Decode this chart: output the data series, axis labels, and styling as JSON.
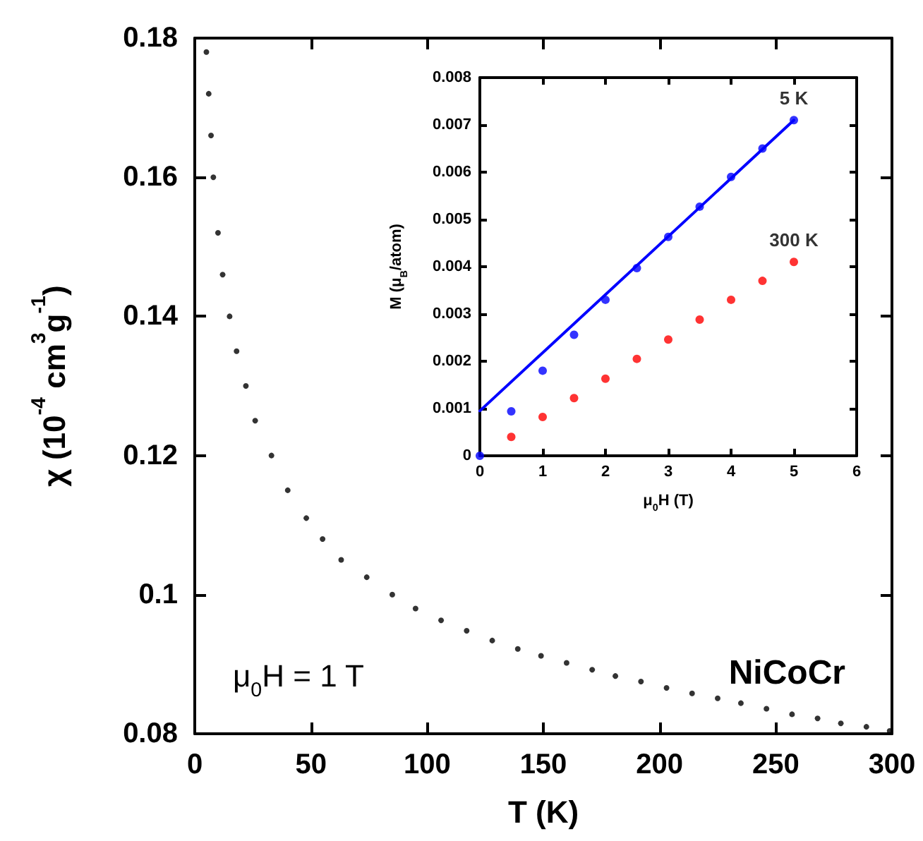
{
  "chart_data": [
    {
      "type": "scatter",
      "xlabel": "T (K)",
      "ylabel": "χ (10$^{-4}$ cm$^{3}$g$^{-1}$)",
      "marker": "circle",
      "grid": false,
      "legend": false,
      "annotations": [
        "μ$_{0}$H = 1 T",
        "NiCoCr"
      ],
      "xlim": [
        0,
        300
      ],
      "xticks": [
        0,
        50,
        100,
        150,
        200,
        250,
        300
      ],
      "ylim": [
        0.08,
        0.18
      ],
      "yticks": [
        0.08,
        0.1,
        0.12,
        0.14,
        0.16,
        0.18
      ],
      "series": [
        {
          "color": "#000000",
          "x": [
            5,
            6,
            7,
            8,
            10,
            12,
            15,
            18,
            22,
            26,
            33,
            40,
            48,
            55,
            63,
            74,
            85,
            95,
            106,
            117,
            128,
            139,
            149,
            160,
            171,
            181,
            192,
            203,
            214,
            225,
            235,
            246,
            257,
            268,
            278,
            289,
            299
          ],
          "values": [
            0.178,
            0.172,
            0.166,
            0.16,
            0.152,
            0.146,
            0.14,
            0.135,
            0.13,
            0.125,
            0.12,
            0.115,
            0.111,
            0.108,
            0.105,
            0.1025,
            0.1,
            0.098,
            0.0963,
            0.0948,
            0.0934,
            0.0922,
            0.0912,
            0.0902,
            0.0892,
            0.0883,
            0.0875,
            0.0866,
            0.0858,
            0.0851,
            0.0844,
            0.0836,
            0.0828,
            0.0822,
            0.0815,
            0.081,
            0.0804
          ]
        }
      ]
    },
    {
      "type": "scatter",
      "xlabel": "μ$_{0}$H (T)",
      "ylabel": "M (μ$_{B}$/atom)",
      "marker": "circle",
      "grid": false,
      "legend": false,
      "xlim": [
        0,
        6
      ],
      "xticks": [
        0,
        1,
        2,
        3,
        4,
        5,
        6
      ],
      "ylim": [
        0,
        0.008
      ],
      "yticks": [
        0,
        0.001,
        0.002,
        0.003,
        0.004,
        0.005,
        0.006,
        0.007,
        0.008
      ],
      "series": [
        {
          "name": "5 K",
          "color": "#0000ff",
          "x": [
            0,
            0.5,
            1,
            1.5,
            2,
            2.5,
            3,
            3.5,
            4,
            4.5,
            5
          ],
          "values": [
            0,
            0.00094,
            0.0018,
            0.00256,
            0.0033,
            0.00397,
            0.00463,
            0.00527,
            0.0059,
            0.0065,
            0.0071
          ]
        },
        {
          "name": "300 K",
          "color": "#ff0000",
          "x": [
            0.5,
            1,
            1.5,
            2,
            2.5,
            3,
            3.5,
            4,
            4.5,
            5
          ],
          "values": [
            0.0004,
            0.00082,
            0.00122,
            0.00163,
            0.00205,
            0.00246,
            0.00288,
            0.0033,
            0.0037,
            0.0041
          ]
        },
        {
          "type": "line",
          "color": "#0000ff",
          "line_style": "solid",
          "marker": "none",
          "x": [
            0,
            5
          ],
          "values": [
            0.00095,
            0.0071
          ]
        }
      ]
    }
  ]
}
